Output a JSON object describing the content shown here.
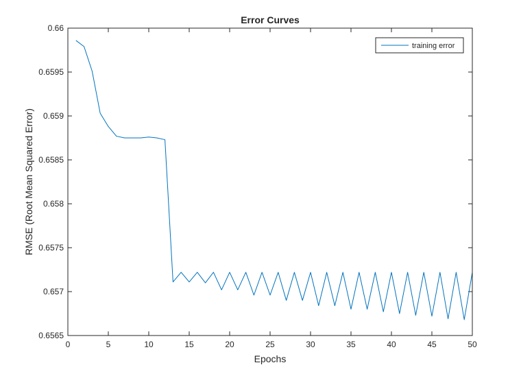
{
  "chart_data": {
    "type": "line",
    "title": "Error Curves",
    "xlabel": "Epochs",
    "ylabel": "RMSE (Root Mean Squared Error)",
    "xlim": [
      0,
      50
    ],
    "ylim": [
      0.6565,
      0.66
    ],
    "x_ticks": [
      0,
      5,
      10,
      15,
      20,
      25,
      30,
      35,
      40,
      45,
      50
    ],
    "x_tick_labels": [
      "0",
      "5",
      "10",
      "15",
      "20",
      "25",
      "30",
      "35",
      "40",
      "45",
      "50"
    ],
    "y_ticks": [
      0.6565,
      0.657,
      0.6575,
      0.658,
      0.6585,
      0.659,
      0.6595,
      0.66
    ],
    "y_tick_labels": [
      "0.6565",
      "0.657",
      "0.6575",
      "0.658",
      "0.6585",
      "0.659",
      "0.6595",
      "0.66"
    ],
    "grid": false,
    "legend_position": "top-right",
    "series": [
      {
        "name": "training error",
        "color": "#0072bd",
        "x": [
          1,
          2,
          3,
          4,
          5,
          6,
          7,
          8,
          9,
          10,
          11,
          12,
          13,
          14,
          15,
          16,
          17,
          18,
          19,
          20,
          21,
          22,
          23,
          24,
          25,
          26,
          27,
          28,
          29,
          30,
          31,
          32,
          33,
          34,
          35,
          36,
          37,
          38,
          39,
          40,
          41,
          42,
          43,
          44,
          45,
          46,
          47,
          48,
          49,
          50
        ],
        "y": [
          0.65986,
          0.65979,
          0.65951,
          0.65903,
          0.65888,
          0.65877,
          0.65875,
          0.65875,
          0.65875,
          0.65876,
          0.65875,
          0.65873,
          0.65711,
          0.65722,
          0.65711,
          0.65722,
          0.6571,
          0.65722,
          0.65702,
          0.65722,
          0.65702,
          0.65722,
          0.65696,
          0.65722,
          0.65696,
          0.65722,
          0.6569,
          0.65722,
          0.6569,
          0.65722,
          0.65684,
          0.65722,
          0.65684,
          0.65722,
          0.6568,
          0.65722,
          0.6568,
          0.65722,
          0.65677,
          0.65722,
          0.65675,
          0.65722,
          0.65673,
          0.65722,
          0.65672,
          0.65722,
          0.65669,
          0.65722,
          0.65668,
          0.65722
        ]
      }
    ]
  }
}
